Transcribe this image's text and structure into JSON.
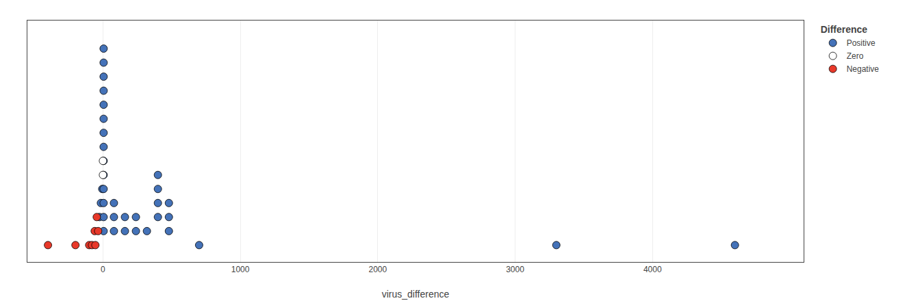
{
  "chart_data": {
    "type": "scatter",
    "xlabel": "virus_difference",
    "legend_title": "Difference",
    "legend": "upper right",
    "marker": "circle",
    "grid": true,
    "tick_labels": "x",
    "xlim": [
      -550,
      5100
    ],
    "xticks": [
      0,
      1000,
      2000,
      3000,
      4000
    ],
    "ylim": [
      -1.2,
      16
    ],
    "yticks": [],
    "series": [
      {
        "name": "Positive",
        "color": "#4472B8",
        "x": [
          -25,
          -15,
          -5,
          5,
          5,
          5,
          5,
          5,
          5,
          5,
          5,
          5,
          5,
          5,
          5,
          5,
          5,
          80,
          80,
          80,
          160,
          160,
          240,
          240,
          320,
          400,
          400,
          400,
          400,
          480,
          480,
          480,
          700,
          3300,
          4600
        ],
        "values": [
          2,
          3,
          4,
          1,
          2,
          3,
          4,
          5,
          6,
          7,
          8,
          9,
          10,
          11,
          12,
          13,
          14,
          1,
          2,
          3,
          1,
          2,
          1,
          2,
          1,
          2,
          3,
          4,
          5,
          1,
          2,
          3,
          0,
          0,
          0
        ]
      },
      {
        "name": "Zero",
        "color": "#FFFFFF",
        "x": [
          0,
          0
        ],
        "values": [
          5,
          6
        ]
      },
      {
        "name": "Negative",
        "color": "#E8392A",
        "x": [
          -400,
          -200,
          -100,
          -80,
          -60,
          -55,
          -45,
          -35
        ],
        "values": [
          0,
          0,
          0,
          0,
          1,
          0,
          2,
          1
        ]
      }
    ]
  }
}
